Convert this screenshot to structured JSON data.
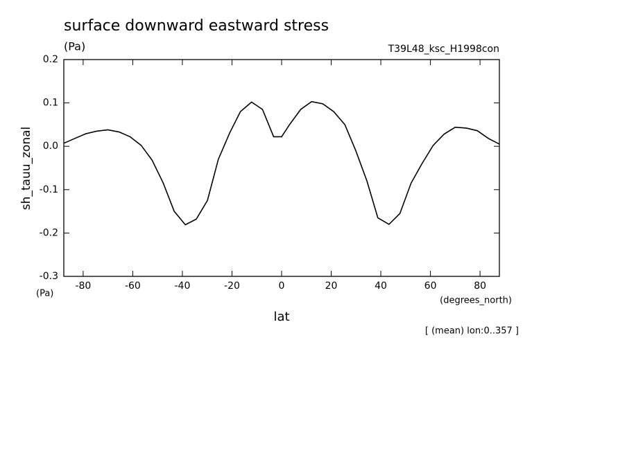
{
  "chart_data": {
    "type": "line",
    "title": "surface downward eastward stress",
    "subtitle": "(Pa)",
    "run_label": "T39L48_ksc_H1998con",
    "y_label": "sh_tauu_zonal",
    "y_unit": "(Pa)",
    "x_label": "lat",
    "x_unit": "(degrees_north)",
    "annotation": "[ (mean) lon:0..357 ]",
    "x": [
      -87.8,
      -83.4,
      -78.9,
      -74.5,
      -70.0,
      -65.5,
      -61.1,
      -56.6,
      -52.2,
      -47.7,
      -43.3,
      -38.8,
      -34.4,
      -29.9,
      -25.5,
      -21.0,
      -16.6,
      -12.1,
      -7.7,
      -3.2,
      0,
      3.2,
      7.7,
      12.1,
      16.6,
      21.0,
      25.5,
      29.9,
      34.4,
      38.8,
      43.3,
      47.7,
      52.2,
      56.6,
      61.1,
      65.5,
      70.0,
      74.5,
      78.9,
      83.4,
      87.8
    ],
    "series": [
      {
        "name": "sh_tauu_zonal",
        "color": "#000000",
        "values": [
          0.007,
          0.018,
          0.029,
          0.035,
          0.038,
          0.033,
          0.022,
          0.002,
          -0.032,
          -0.085,
          -0.15,
          -0.181,
          -0.168,
          -0.125,
          -0.03,
          0.03,
          0.08,
          0.102,
          0.085,
          0.022,
          0.022,
          0.05,
          0.085,
          0.103,
          0.098,
          0.08,
          0.05,
          -0.01,
          -0.08,
          -0.165,
          -0.18,
          -0.155,
          -0.085,
          -0.04,
          0.002,
          0.028,
          0.044,
          0.042,
          0.036,
          0.018,
          0.005
        ]
      }
    ],
    "xlim": [
      -87.8,
      87.8
    ],
    "ylim": [
      -0.3,
      0.2
    ],
    "xticks": [
      -80,
      -60,
      -40,
      -20,
      0,
      20,
      40,
      60,
      80
    ],
    "yticks": [
      -0.3,
      -0.2,
      -0.1,
      {
        "value": 0,
        "label": "0.0"
      },
      0.1,
      0.2
    ]
  }
}
